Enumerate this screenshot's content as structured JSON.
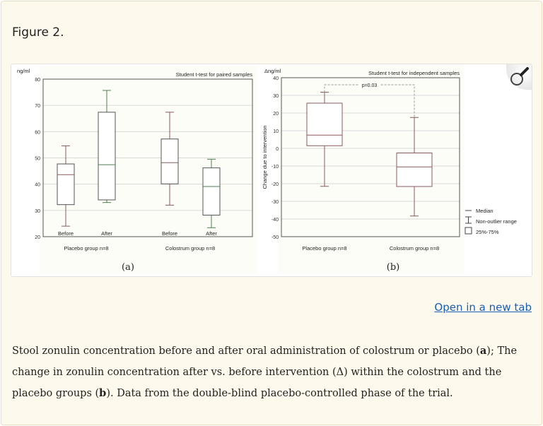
{
  "figure_title": "Figure 2.",
  "open_link": "Open in a new tab",
  "caption": [
    {
      "t": "Stool zonulin concentration before and after oral administration of colostrum or placebo ("
    },
    {
      "t": "a",
      "b": true
    },
    {
      "t": "); The change in zonulin concentration after vs. before intervention (Δ) within the colostrum and the placebo groups ("
    },
    {
      "t": "b",
      "b": true
    },
    {
      "t": "). Data from the double-blind placebo-controlled phase of the trial."
    }
  ],
  "icons": {
    "zoom": "magnifier-icon"
  },
  "colors": {
    "placebo": "#8b5a5e",
    "colostrum_after": "#4f7f50",
    "box": "#555555",
    "grid": "#d8d8d8"
  },
  "chart_data": [
    {
      "type": "box",
      "panel_label": "(a)",
      "title": "Student t-test for paired samples",
      "ylabel": "ng/ml",
      "ylim": [
        20,
        80
      ],
      "yticks": [
        20,
        30,
        40,
        50,
        60,
        70,
        80
      ],
      "grid": true,
      "groups": [
        "Placebo group n=8",
        "Colostrum group n=8"
      ],
      "series": [
        {
          "category": "Before",
          "group": 0,
          "min": 24,
          "q1": 32.2,
          "median": 43.6,
          "q3": 47.7,
          "max": 54.6
        },
        {
          "category": "After",
          "group": 0,
          "min": 33,
          "q1": 34,
          "median": 47.4,
          "q3": 67.4,
          "max": 75.7
        },
        {
          "category": "Before",
          "group": 1,
          "min": 32,
          "q1": 40.1,
          "median": 48.2,
          "q3": 57.2,
          "max": 67.4
        },
        {
          "category": "After",
          "group": 1,
          "min": 23.4,
          "q1": 28.2,
          "median": 39.1,
          "q3": 46.2,
          "max": 49.5
        }
      ]
    },
    {
      "type": "box",
      "panel_label": "(b)",
      "title": "Student t-test for independent samples",
      "ylabel": "Change due to intervention",
      "yunit": "Δng/ml",
      "ylim": [
        -50,
        40
      ],
      "yticks": [
        -50,
        -40,
        -30,
        -20,
        -10,
        0,
        10,
        20,
        30,
        40
      ],
      "grid": true,
      "categories": [
        "Placebo group n=8",
        "Colostrum group n=8"
      ],
      "series": [
        {
          "min": -21.5,
          "q1": 1.5,
          "median": 7.5,
          "q3": 25.6,
          "max": 31.8
        },
        {
          "min": -38.3,
          "q1": -21.6,
          "median": -10.5,
          "q3": -2.6,
          "max": 17.5
        }
      ],
      "annotation": {
        "text": "p=0.03",
        "y": 36
      },
      "legend": [
        "Median",
        "Non-outlier range",
        "25%-75%"
      ],
      "legend_position": "right"
    }
  ]
}
